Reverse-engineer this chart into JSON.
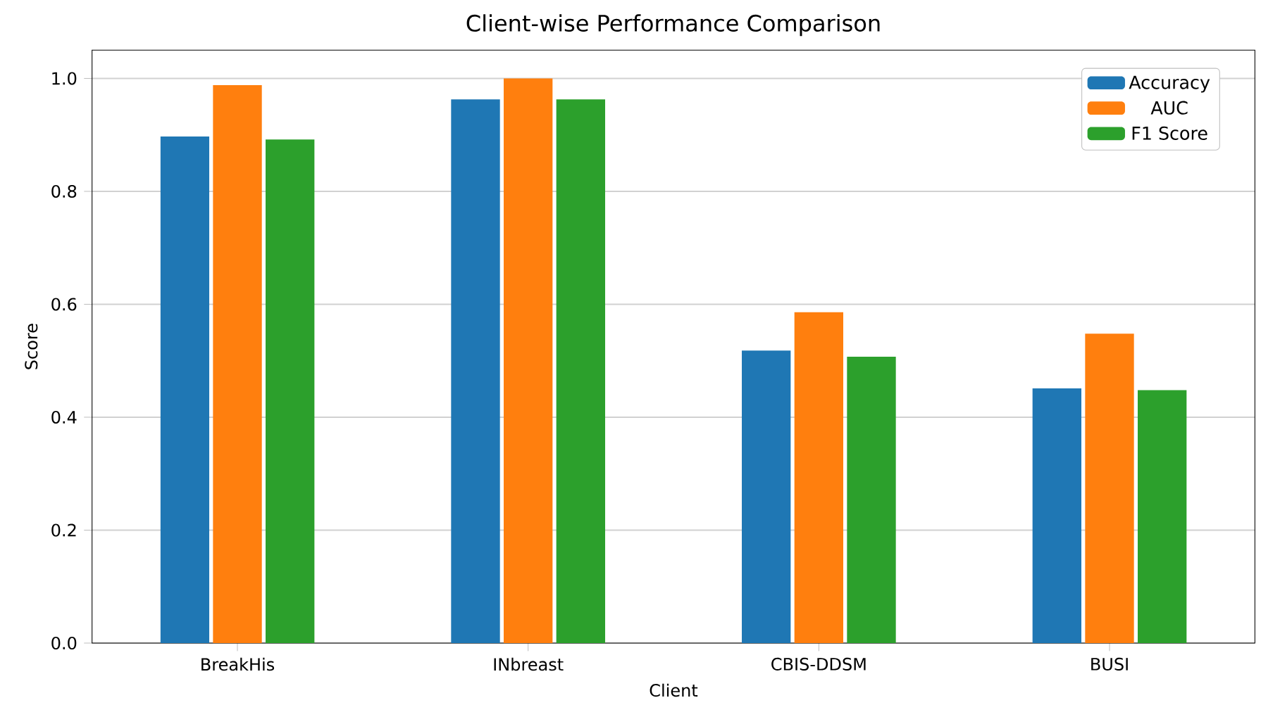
{
  "chart_data": {
    "type": "bar",
    "title": "Client-wise Performance Comparison",
    "xlabel": "Client",
    "ylabel": "Score",
    "categories": [
      "BreakHis",
      "INbreast",
      "CBIS-DDSM",
      "BUSI"
    ],
    "series": [
      {
        "name": "Accuracy",
        "color": "#1f77b4",
        "values": [
          0.897,
          0.963,
          0.518,
          0.451
        ]
      },
      {
        "name": "AUC",
        "color": "#ff7f0e",
        "values": [
          0.988,
          1.0,
          0.586,
          0.548
        ]
      },
      {
        "name": "F1 Score",
        "color": "#2ca02c",
        "values": [
          0.892,
          0.963,
          0.507,
          0.448
        ]
      }
    ],
    "ylim": [
      0,
      1.05
    ],
    "yticks": [
      {
        "value": 0,
        "label": "0.0"
      },
      {
        "value": 0.2,
        "label": "0.2"
      },
      {
        "value": 0.4,
        "label": "0.4"
      },
      {
        "value": 0.6,
        "label": "0.6"
      },
      {
        "value": 0.8,
        "label": "0.8"
      },
      {
        "value": 1.0,
        "label": "1.0"
      }
    ],
    "grid": "y",
    "legend": "top right"
  }
}
